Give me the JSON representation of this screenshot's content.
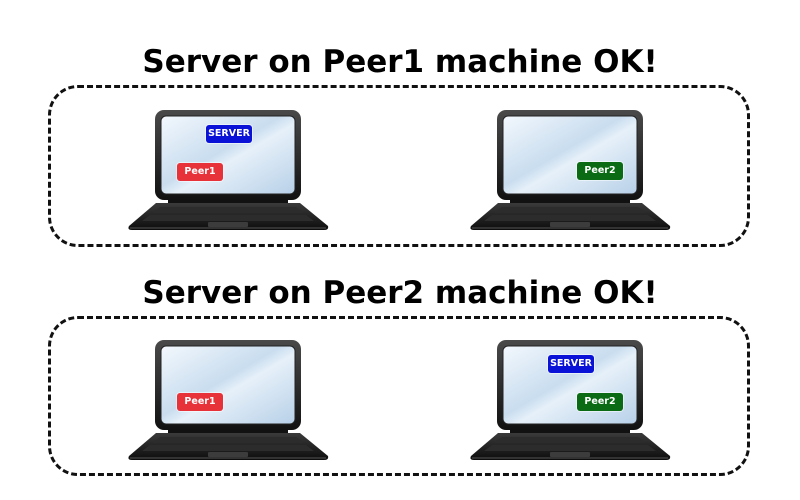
{
  "scenarios": [
    {
      "title": "Server on Peer1 machine OK!",
      "left_laptop": {
        "peer_label": "Peer1",
        "server_label": "SERVER"
      },
      "right_laptop": {
        "peer_label": "Peer2"
      }
    },
    {
      "title": "Server on Peer2 machine OK!",
      "left_laptop": {
        "peer_label": "Peer1"
      },
      "right_laptop": {
        "peer_label": "Peer2",
        "server_label": "SERVER"
      }
    }
  ],
  "colors": {
    "server_badge": "#0a12d8",
    "peer1_badge": "#e8323a",
    "peer2_badge": "#0a6b14",
    "screen_light": "#eef4fb",
    "screen_mid": "#b9d3ea",
    "laptop_body": "#1a1a1a",
    "box_border": "#111111"
  }
}
